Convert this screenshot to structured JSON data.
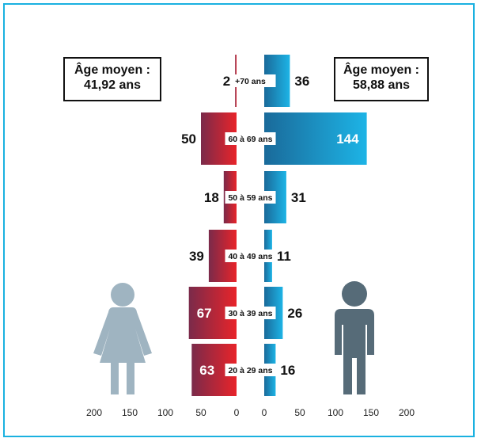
{
  "women_avg": {
    "label": "Âge moyen :",
    "value": "41,92 ans",
    "color": "#9fb4c1"
  },
  "men_avg": {
    "label": "Âge moyen :",
    "value": "58,88 ans",
    "color": "#566b78"
  },
  "chart_data": {
    "type": "bar",
    "orientation": "horizontal-pyramid",
    "categories": [
      "+70 ans",
      "60 à 69 ans",
      "50 à 59 ans",
      "40 à 49 ans",
      "30 à 39 ans",
      "20 à 29 ans"
    ],
    "series": [
      {
        "values": [
          2,
          50,
          18,
          39,
          67,
          63
        ],
        "color_dark": "#7a2a4a",
        "color_light": "#e8242a"
      },
      {
        "values": [
          36,
          144,
          31,
          11,
          26,
          16
        ],
        "color_dark": "#1a6a9a",
        "color_light": "#1db4e6"
      }
    ],
    "left_ticks": [
      "200",
      "150",
      "100",
      "50",
      "0"
    ],
    "right_ticks": [
      "0",
      "50",
      "100",
      "150",
      "200"
    ],
    "xlim": [
      0,
      200
    ]
  }
}
